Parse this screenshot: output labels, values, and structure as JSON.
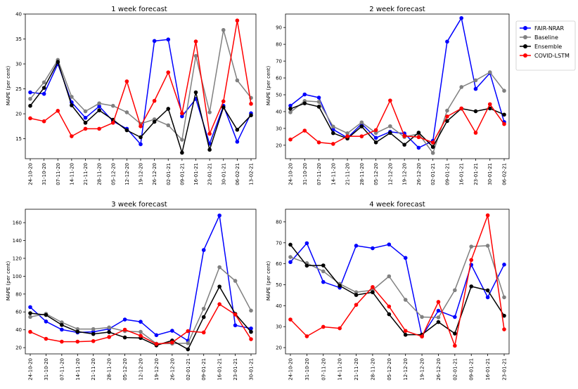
{
  "legend": [
    {
      "name": "FAIR-NRAR",
      "color": "#0000ff"
    },
    {
      "name": "Baseline",
      "color": "#808080"
    },
    {
      "name": "Ensemble",
      "color": "#000000"
    },
    {
      "name": "COVID-LSTM",
      "color": "#ff0000"
    }
  ],
  "chart_data": [
    {
      "type": "line",
      "title": "1 week forecast",
      "ylabel": "MAPE (per cent)",
      "xlabel": "",
      "ylim": [
        11,
        40
      ],
      "yticks": [
        15,
        20,
        25,
        30,
        35,
        40
      ],
      "categories": [
        "24-10-20",
        "31-10-20",
        "07-11-20",
        "14-11-20",
        "21-11-20",
        "28-11-20",
        "05-12-20",
        "12-12-20",
        "19-12-20",
        "26-12-20",
        "02-01-21",
        "09-01-21",
        "16-01-21",
        "23-01-21",
        "30-01-21",
        "06-02-21",
        "13-02-21"
      ],
      "series": [
        {
          "name": "FAIR-NRAR",
          "values": [
            24.3,
            24.0,
            30.0,
            22.3,
            19.2,
            21.5,
            18.5,
            17.0,
            13.9,
            34.6,
            34.9,
            19.5,
            23.0,
            14.0,
            21.6,
            14.4,
            20.1
          ]
        },
        {
          "name": "Baseline",
          "values": [
            23.0,
            26.3,
            30.8,
            23.4,
            20.5,
            22.1,
            21.6,
            20.3,
            18.0,
            18.9,
            17.7,
            14.8,
            31.6,
            20.3,
            36.8,
            26.7,
            23.2
          ]
        },
        {
          "name": "Ensemble",
          "values": [
            21.6,
            25.2,
            30.4,
            21.7,
            18.2,
            20.7,
            18.8,
            16.7,
            15.3,
            18.4,
            21.0,
            12.2,
            24.3,
            12.8,
            21.3,
            16.8,
            19.7
          ]
        },
        {
          "name": "COVID-LSTM",
          "values": [
            19.1,
            18.5,
            20.6,
            15.5,
            17.0,
            17.0,
            18.2,
            26.5,
            17.5,
            22.6,
            28.3,
            20.1,
            34.5,
            16.0,
            22.5,
            38.7,
            22.0
          ]
        }
      ]
    },
    {
      "type": "line",
      "title": "2 week forecast",
      "ylabel": "MAPE (per cent)",
      "xlabel": "",
      "ylim": [
        12,
        98
      ],
      "yticks": [
        20,
        30,
        40,
        50,
        60,
        70,
        80,
        90
      ],
      "categories": [
        "24-10-20",
        "31-10-20",
        "07-11-20",
        "14-11-20",
        "21-11-20",
        "28-11-20",
        "05-12-20",
        "12-12-20",
        "19-12-20",
        "26-12-20",
        "02-01-21",
        "09-01-21",
        "16-01-21",
        "23-01-21",
        "30-01-21",
        "06-02-21"
      ],
      "series": [
        {
          "name": "FAIR-NRAR",
          "values": [
            43.5,
            50.2,
            48.3,
            29.4,
            24.4,
            32.7,
            24.4,
            28.0,
            27.0,
            18.5,
            22.6,
            81.6,
            95.6,
            53.5,
            62.9,
            33.8
          ]
        },
        {
          "name": "Baseline",
          "values": [
            39.6,
            46.3,
            45.8,
            31.1,
            27.1,
            33.6,
            27.3,
            31.3,
            24.9,
            26.8,
            15.4,
            40.6,
            54.6,
            58.6,
            63.4,
            52.4
          ]
        },
        {
          "name": "Ensemble",
          "values": [
            41.7,
            44.9,
            42.9,
            27.2,
            24.0,
            31.2,
            21.7,
            27.3,
            20.3,
            27.5,
            19.0,
            34.4,
            41.8,
            40.2,
            41.9,
            38.2
          ]
        },
        {
          "name": "COVID-LSTM",
          "values": [
            23.4,
            28.7,
            21.7,
            20.8,
            25.3,
            25.3,
            29.0,
            46.6,
            25.5,
            24.8,
            21.6,
            37.1,
            41.9,
            27.4,
            44.4,
            32.6
          ]
        }
      ]
    },
    {
      "type": "line",
      "title": "3 week forecast",
      "ylabel": "MAPE (per cent)",
      "xlabel": "",
      "ylim": [
        13,
        175
      ],
      "yticks": [
        20,
        40,
        60,
        80,
        100,
        120,
        140,
        160
      ],
      "categories": [
        "24-10-20",
        "31-10-20",
        "07-11-20",
        "14-11-20",
        "21-11-20",
        "28-11-20",
        "05-12-20",
        "12-12-20",
        "19-12-20",
        "26-12-20",
        "02-01-21",
        "09-01-21",
        "16-01-21",
        "23-01-21",
        "30-01-21"
      ],
      "series": [
        {
          "name": "FAIR-NRAR",
          "values": [
            65.4,
            49.3,
            40.2,
            37.0,
            37.7,
            41.0,
            51.5,
            49.0,
            34.0,
            38.9,
            27.8,
            129.3,
            168.0,
            45.0,
            41.5
          ]
        },
        {
          "name": "Baseline",
          "values": [
            54.4,
            57.9,
            48.3,
            40.8,
            40.8,
            42.6,
            38.5,
            37.7,
            24.5,
            24.5,
            25.0,
            63.6,
            110.1,
            94.8,
            61.5
          ]
        },
        {
          "name": "Ensemble",
          "values": [
            58.6,
            56.6,
            45.4,
            37.9,
            35.3,
            37.4,
            31.4,
            30.8,
            22.5,
            28.0,
            18.1,
            54.2,
            88.4,
            57.8,
            37.7
          ]
        },
        {
          "name": "COVID-LSTM",
          "values": [
            37.7,
            29.9,
            26.7,
            26.7,
            27.3,
            31.9,
            40.1,
            33.3,
            24.1,
            25.8,
            38.5,
            37.0,
            68.7,
            57.1,
            29.5
          ]
        }
      ]
    },
    {
      "type": "line",
      "title": "4 week forecast",
      "ylabel": "MAPE (per cent)",
      "xlabel": "",
      "ylim": [
        17,
        86
      ],
      "yticks": [
        20,
        30,
        40,
        50,
        60,
        70,
        80
      ],
      "categories": [
        "24-10-20",
        "31-10-20",
        "07-11-20",
        "14-11-20",
        "21-11-20",
        "28-11-20",
        "05-12-20",
        "12-12-20",
        "19-12-20",
        "26-12-20",
        "02-01-21",
        "09-01-21",
        "16-01-21",
        "23-01-21"
      ],
      "series": [
        {
          "name": "FAIR-NRAR",
          "values": [
            60.8,
            69.8,
            51.3,
            48.6,
            68.6,
            67.4,
            69.2,
            62.8,
            25.5,
            37.6,
            34.6,
            59.5,
            44.0,
            59.6
          ]
        },
        {
          "name": "Baseline",
          "values": [
            63.2,
            60.3,
            56.4,
            50.4,
            46.4,
            47.4,
            54.0,
            42.8,
            34.6,
            34.4,
            47.4,
            68.2,
            68.6,
            44.0
          ]
        },
        {
          "name": "Ensemble",
          "values": [
            69.1,
            59.1,
            59.2,
            49.5,
            45.1,
            46.4,
            35.9,
            26.1,
            26.2,
            32.2,
            26.7,
            49.2,
            47.3,
            35.2
          ]
        },
        {
          "name": "COVID-LSTM",
          "values": [
            33.4,
            25.4,
            29.9,
            29.2,
            40.4,
            48.9,
            39.6,
            28.0,
            25.3,
            41.8,
            20.9,
            61.8,
            83.1,
            28.7
          ]
        }
      ]
    }
  ]
}
